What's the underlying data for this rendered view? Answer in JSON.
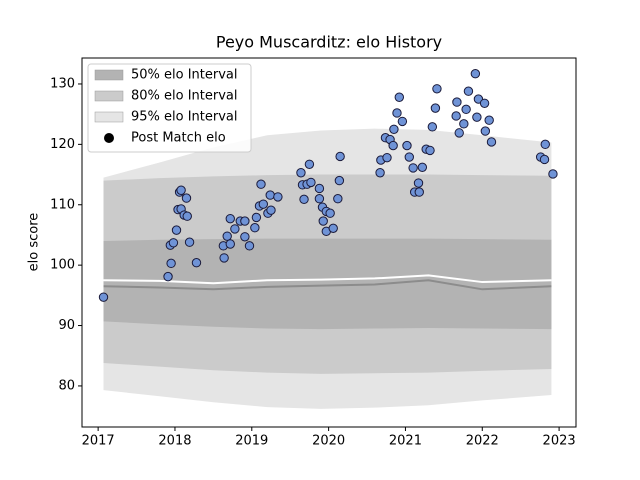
{
  "chart_data": {
    "type": "scatter",
    "title": "Peyo Muscarditz: elo History",
    "ylabel": "elo score",
    "xlim": [
      2016.79,
      2023.22
    ],
    "ylim": [
      73.2,
      134.3
    ],
    "xticks": [
      2017,
      2018,
      2019,
      2020,
      2021,
      2022,
      2023
    ],
    "yticks": [
      80,
      90,
      100,
      110,
      120,
      130
    ],
    "legend": "upper left",
    "band_x": [
      2017.07,
      2017.8,
      2018.5,
      2019.2,
      2019.9,
      2020.6,
      2021.3,
      2022.0,
      2022.9
    ],
    "bands": [
      {
        "name": "50% elo Interval",
        "color": "#b3b3b3",
        "lower": [
          90.7,
          90.2,
          89.8,
          89.5,
          89.4,
          89.5,
          89.6,
          89.5,
          89.4
        ],
        "upper": [
          104.0,
          104.2,
          104.3,
          104.4,
          104.4,
          104.4,
          104.4,
          104.3,
          104.2
        ]
      },
      {
        "name": "80% elo Interval",
        "color": "#cbcbcb",
        "lower": [
          83.8,
          83.2,
          82.6,
          82.2,
          82.0,
          82.1,
          82.2,
          82.5,
          82.8
        ],
        "upper": [
          114.0,
          114.4,
          114.7,
          114.9,
          115.0,
          115.0,
          115.0,
          114.9,
          114.8
        ]
      },
      {
        "name": "95% elo Interval",
        "color": "#e5e5e5",
        "lower": [
          79.3,
          78.3,
          77.3,
          76.5,
          76.2,
          76.4,
          76.8,
          77.6,
          78.5
        ],
        "upper": [
          114.5,
          117.0,
          119.5,
          121.5,
          122.3,
          122.6,
          122.4,
          121.5,
          120.3
        ]
      }
    ],
    "lines": [
      {
        "color": "#8c8c8c",
        "values": [
          96.5,
          96.3,
          96.0,
          96.4,
          96.6,
          96.8,
          97.5,
          96.0,
          96.5
        ]
      },
      {
        "color": "#ffffff",
        "values": [
          97.5,
          97.4,
          97.0,
          97.5,
          97.6,
          97.8,
          98.3,
          97.2,
          97.5
        ]
      }
    ],
    "series": [
      {
        "name": "Post Match elo",
        "color": "#6f93d6",
        "x": [
          2017.07,
          2017.91,
          2017.94,
          2017.95,
          2017.98,
          2018.02,
          2018.04,
          2018.06,
          2018.08,
          2018.08,
          2018.12,
          2018.15,
          2018.16,
          2018.19,
          2018.28,
          2018.63,
          2018.64,
          2018.68,
          2018.72,
          2018.72,
          2018.78,
          2018.85,
          2018.91,
          2018.91,
          2018.97,
          2019.04,
          2019.06,
          2019.1,
          2019.12,
          2019.15,
          2019.21,
          2019.24,
          2019.25,
          2019.34,
          2019.64,
          2019.66,
          2019.68,
          2019.72,
          2019.75,
          2019.77,
          2019.88,
          2019.88,
          2019.92,
          2019.93,
          2019.97,
          2019.97,
          2020.02,
          2020.06,
          2020.12,
          2020.14,
          2020.15,
          2020.67,
          2020.68,
          2020.74,
          2020.76,
          2020.8,
          2020.84,
          2020.85,
          2020.89,
          2020.92,
          2020.96,
          2021.02,
          2021.05,
          2021.1,
          2021.12,
          2021.17,
          2021.18,
          2021.22,
          2021.27,
          2021.32,
          2021.35,
          2021.39,
          2021.41,
          2021.66,
          2021.67,
          2021.7,
          2021.76,
          2021.79,
          2021.82,
          2021.91,
          2021.93,
          2021.95,
          2022.03,
          2022.04,
          2022.09,
          2022.12,
          2022.76,
          2022.81,
          2022.82,
          2022.92
        ],
        "values": [
          94.7,
          98.1,
          103.3,
          100.3,
          103.7,
          105.8,
          109.2,
          112.1,
          112.4,
          109.3,
          108.3,
          111.1,
          108.1,
          103.8,
          100.4,
          103.2,
          101.2,
          104.8,
          103.5,
          107.7,
          106.0,
          107.3,
          107.3,
          104.7,
          103.2,
          106.2,
          107.9,
          109.8,
          113.4,
          110.1,
          108.6,
          111.6,
          109.1,
          111.3,
          115.3,
          113.3,
          110.9,
          113.4,
          116.7,
          113.7,
          112.7,
          111.0,
          109.6,
          107.3,
          108.9,
          105.6,
          108.6,
          106.1,
          111.0,
          114.0,
          118.0,
          115.3,
          117.4,
          121.1,
          117.8,
          120.8,
          119.8,
          122.5,
          125.2,
          127.8,
          123.8,
          119.8,
          117.9,
          116.1,
          112.1,
          113.6,
          112.1,
          116.2,
          119.2,
          119.0,
          122.9,
          126.0,
          129.2,
          124.7,
          127.0,
          121.9,
          123.4,
          125.8,
          128.8,
          131.7,
          124.5,
          127.5,
          126.8,
          122.2,
          124.0,
          120.4,
          117.9,
          117.5,
          120.0,
          115.1
        ]
      }
    ]
  }
}
